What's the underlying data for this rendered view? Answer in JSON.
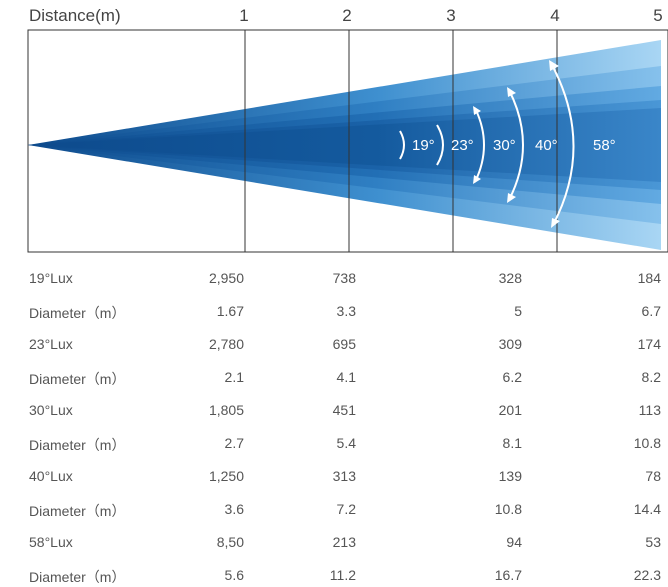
{
  "header": {
    "title": "Distance(m)",
    "ticks": [
      "1",
      "2",
      "3",
      "4",
      "5"
    ]
  },
  "beam": {
    "angles": [
      "19°",
      "23°",
      "30°",
      "40°",
      "58°"
    ],
    "colors": {
      "deep": "#0d4a8c",
      "mid": "#2f7fc3",
      "light": "#8ac4ee"
    }
  },
  "table": {
    "rows": [
      {
        "label": "19°Lux",
        "values": [
          "2,950",
          "738",
          "328",
          "184"
        ]
      },
      {
        "label": "Diameter（m）",
        "values": [
          "1.67",
          "3.3",
          "5",
          "6.7"
        ]
      },
      {
        "label": "23°Lux",
        "values": [
          "2,780",
          "695",
          "309",
          "174"
        ]
      },
      {
        "label": "Diameter（m）",
        "values": [
          "2.1",
          "4.1",
          "6.2",
          "8.2"
        ]
      },
      {
        "label": "30°Lux",
        "values": [
          "1,805",
          "451",
          "201",
          "113"
        ]
      },
      {
        "label": "Diameter（m）",
        "values": [
          "2.7",
          "5.4",
          "8.1",
          "10.8"
        ]
      },
      {
        "label": "40°Lux",
        "values": [
          "1,250",
          "313",
          "139",
          "78"
        ]
      },
      {
        "label": "Diameter（m）",
        "values": [
          "3.6",
          "7.2",
          "10.8",
          "14.4"
        ]
      },
      {
        "label": "58°Lux",
        "values": [
          "8,50",
          "213",
          "94",
          "53"
        ]
      },
      {
        "label": "Diameter（m）",
        "values": [
          "5.6",
          "11.2",
          "16.7",
          "22.3"
        ]
      }
    ]
  }
}
